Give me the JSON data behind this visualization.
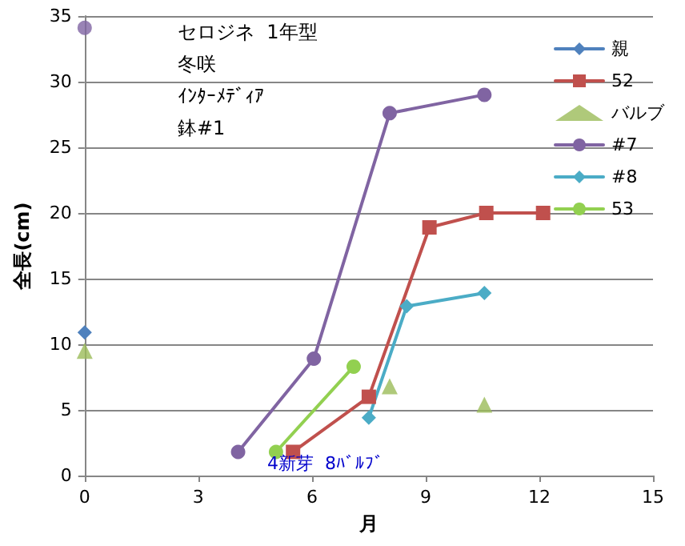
{
  "chart_data": {
    "type": "line",
    "xlabel": "月",
    "ylabel": "全長(cm)",
    "xlim": [
      0,
      15
    ],
    "xticks": [
      0,
      3,
      6,
      9,
      12,
      15
    ],
    "ylim": [
      0,
      35
    ],
    "yticks": [
      0,
      5,
      10,
      15,
      20,
      25,
      30,
      35
    ],
    "grid": "y",
    "legend": "top right",
    "annotations": [
      "セロジネ  1年型",
      "冬咲",
      "ｲﾝﾀｰﾒﾃﾞｨｱ",
      "鉢#1",
      "4新芽  8ﾊﾞﾙﾌﾞ"
    ],
    "series": [
      {
        "name": "親",
        "color": "#4f81bd",
        "marker": "diamond",
        "x": [
          0
        ],
        "values": [
          10.9
        ]
      },
      {
        "name": "52",
        "color": "#c0504d",
        "marker": "square",
        "x": [
          5.5,
          7.5,
          9.1,
          10.6,
          12.1
        ],
        "values": [
          1.8,
          6.0,
          18.9,
          20.0,
          20.0
        ]
      },
      {
        "name": "バルブ",
        "type": "scatter",
        "color": "#9bbb59",
        "marker": "triangle",
        "x": [
          0,
          8.05,
          10.55
        ],
        "values": [
          9.5,
          6.8,
          5.4
        ]
      },
      {
        "type": "scatter",
        "color": "#8064a2",
        "marker": "circle",
        "x": [
          0
        ],
        "values": [
          34.1
        ]
      },
      {
        "name": "#7",
        "color": "#8064a2",
        "marker": "circle",
        "x": [
          4.05,
          6.05,
          8.05,
          10.55
        ],
        "values": [
          1.8,
          8.9,
          27.6,
          29.0
        ]
      },
      {
        "name": "#8",
        "color": "#4bacc6",
        "marker": "diamond",
        "x": [
          7.5,
          8.5,
          10.55
        ],
        "values": [
          4.4,
          12.9,
          13.9
        ]
      },
      {
        "name": "53",
        "color": "#92d050",
        "marker": "circle",
        "x": [
          5.05,
          7.1
        ],
        "values": [
          1.8,
          8.3
        ]
      }
    ]
  }
}
